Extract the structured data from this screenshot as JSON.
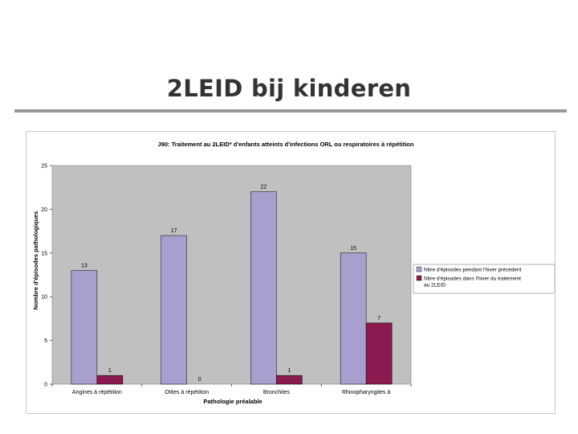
{
  "slide": {
    "title": "2LEID bij kinderen"
  },
  "chart_data": {
    "type": "bar",
    "title": "J90: Traitement au 2LEID* d'enfants atteints d'infections ORL ou respiratoires à répétition",
    "xlabel": "Pathologie préalable",
    "ylabel": "Nombre d'épisodes pathologiques",
    "ylim": [
      0,
      25
    ],
    "yticks": [
      0,
      5,
      10,
      15,
      20,
      25
    ],
    "grid": false,
    "legend_position": "right",
    "categories": [
      "Angines à répétition",
      "Otites à répétition",
      "Bronchites",
      "Rhinopharyngites à"
    ],
    "series": [
      {
        "name": "Nbre d'épisodes pendant l'hiver précédent",
        "values": [
          13,
          17,
          22,
          15
        ],
        "color": "#a99fcf"
      },
      {
        "name": "Nbre d'épisodes dans l'hiver du traitement au 2LEID",
        "values": [
          1,
          0,
          1,
          7
        ],
        "color": "#8b1a4f"
      }
    ],
    "plot_background": "#c0c0c0"
  }
}
